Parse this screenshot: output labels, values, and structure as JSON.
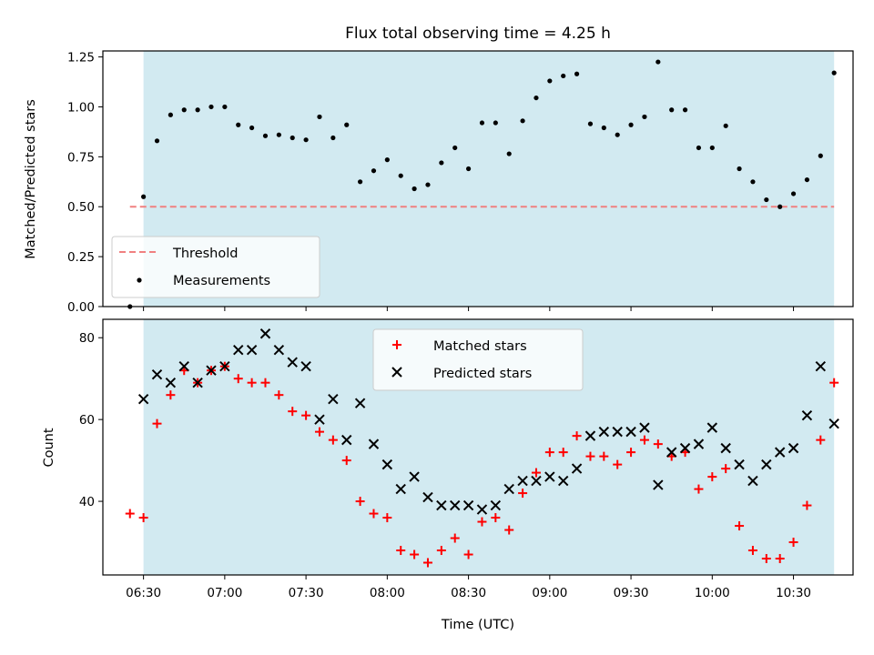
{
  "chart_data": [
    {
      "type": "scatter",
      "title": "Flux total observing time = 4.25 h",
      "xlabel": "",
      "ylabel": "Matched/Predicted stars",
      "xlim": [
        "06:15",
        "10:52"
      ],
      "ylim": [
        0,
        1.28
      ],
      "yticks": [
        "0.00",
        "0.25",
        "0.50",
        "0.75",
        "1.00",
        "1.25"
      ],
      "ytick_values": [
        0,
        0.25,
        0.5,
        0.75,
        1.0,
        1.25
      ],
      "grid": false,
      "legend_position": "lower-left",
      "shaded_span": {
        "from": "06:30",
        "to": "10:45",
        "color": "#add8e6"
      },
      "threshold": {
        "name": "Threshold",
        "value": 0.5,
        "from": "06:25",
        "to": "10:45",
        "color": "#f08080",
        "style": "dashed"
      },
      "series": [
        {
          "name": "Measurements",
          "marker": "dot",
          "color": "#000000",
          "x": [
            "06:25",
            "06:30",
            "06:35",
            "06:40",
            "06:45",
            "06:50",
            "06:55",
            "07:00",
            "07:05",
            "07:10",
            "07:15",
            "07:20",
            "07:25",
            "07:30",
            "07:35",
            "07:40",
            "07:45",
            "07:50",
            "07:55",
            "08:00",
            "08:05",
            "08:10",
            "08:15",
            "08:20",
            "08:25",
            "08:30",
            "08:35",
            "08:40",
            "08:45",
            "08:50",
            "08:55",
            "09:00",
            "09:05",
            "09:10",
            "09:15",
            "09:20",
            "09:25",
            "09:30",
            "09:35",
            "09:40",
            "09:45",
            "09:50",
            "09:55",
            "10:00",
            "10:05",
            "10:10",
            "10:15",
            "10:20",
            "10:25",
            "10:30",
            "10:35",
            "10:40",
            "10:45"
          ],
          "y": [
            0.0,
            0.55,
            0.83,
            0.96,
            0.985,
            0.985,
            1.0,
            1.0,
            0.91,
            0.895,
            0.855,
            0.86,
            0.845,
            0.835,
            0.95,
            0.845,
            0.91,
            0.625,
            0.68,
            0.735,
            0.655,
            0.59,
            0.61,
            0.72,
            0.795,
            0.69,
            0.92,
            0.92,
            0.765,
            0.93,
            1.045,
            1.13,
            1.155,
            1.165,
            0.915,
            0.895,
            0.86,
            0.91,
            0.95,
            1.225,
            0.985,
            0.985,
            0.795,
            0.795,
            0.905,
            0.69,
            0.625,
            0.535,
            0.5,
            0.565,
            0.635,
            0.755,
            1.17
          ]
        }
      ]
    },
    {
      "type": "scatter",
      "title": "",
      "xlabel": "Time (UTC)",
      "ylabel": "Count",
      "xlim": [
        "06:15",
        "10:52"
      ],
      "ylim": [
        22,
        84.5
      ],
      "xticks": [
        "06:30",
        "07:00",
        "07:30",
        "08:00",
        "08:30",
        "09:00",
        "09:30",
        "10:00",
        "10:30"
      ],
      "yticks": [
        "40",
        "60",
        "80"
      ],
      "ytick_values": [
        40,
        60,
        80
      ],
      "grid": false,
      "legend_position": "upper-center",
      "shaded_span": {
        "from": "06:30",
        "to": "10:45",
        "color": "#add8e6"
      },
      "series": [
        {
          "name": "Matched stars",
          "marker": "plus",
          "color": "#ff0000",
          "x": [
            "06:25",
            "06:30",
            "06:35",
            "06:40",
            "06:45",
            "06:50",
            "06:55",
            "07:00",
            "07:05",
            "07:10",
            "07:15",
            "07:20",
            "07:25",
            "07:30",
            "07:35",
            "07:40",
            "07:45",
            "07:50",
            "07:55",
            "08:00",
            "08:05",
            "08:10",
            "08:15",
            "08:20",
            "08:25",
            "08:30",
            "08:35",
            "08:40",
            "08:45",
            "08:50",
            "08:55",
            "09:00",
            "09:05",
            "09:10",
            "09:15",
            "09:20",
            "09:25",
            "09:30",
            "09:35",
            "09:40",
            "09:45",
            "09:50",
            "09:55",
            "10:00",
            "10:05",
            "10:10",
            "10:15",
            "10:20",
            "10:25",
            "10:30",
            "10:35",
            "10:40",
            "10:45"
          ],
          "y": [
            37,
            36,
            59,
            66,
            72,
            69,
            72,
            73,
            70,
            69,
            69,
            66,
            62,
            61,
            57,
            55,
            50,
            40,
            37,
            36,
            28,
            27,
            25,
            28,
            31,
            27,
            35,
            36,
            33,
            42,
            47,
            52,
            52,
            56,
            51,
            51,
            49,
            52,
            55,
            54,
            51,
            52,
            43,
            46,
            48,
            34,
            28,
            26,
            26,
            30,
            39,
            55,
            69
          ]
        },
        {
          "name": "Predicted stars",
          "marker": "x",
          "color": "#000000",
          "x": [
            "06:30",
            "06:35",
            "06:40",
            "06:45",
            "06:50",
            "06:55",
            "07:00",
            "07:05",
            "07:10",
            "07:15",
            "07:20",
            "07:25",
            "07:30",
            "07:35",
            "07:40",
            "07:45",
            "07:50",
            "07:55",
            "08:00",
            "08:05",
            "08:10",
            "08:15",
            "08:20",
            "08:25",
            "08:30",
            "08:35",
            "08:40",
            "08:45",
            "08:50",
            "08:55",
            "09:00",
            "09:05",
            "09:10",
            "09:15",
            "09:20",
            "09:25",
            "09:30",
            "09:35",
            "09:40",
            "09:45",
            "09:50",
            "09:55",
            "10:00",
            "10:05",
            "10:10",
            "10:15",
            "10:20",
            "10:25",
            "10:30",
            "10:35",
            "10:40",
            "10:45"
          ],
          "y": [
            65,
            71,
            69,
            73,
            69,
            72,
            73,
            77,
            77,
            81,
            77,
            74,
            73,
            60,
            65,
            55,
            64,
            54,
            49,
            43,
            46,
            41,
            39,
            39,
            39,
            38,
            39,
            43,
            45,
            45,
            46,
            45,
            48,
            56,
            57,
            57,
            57,
            58,
            44,
            52,
            53,
            54,
            58,
            53,
            49,
            45,
            49,
            52,
            53,
            61,
            73,
            59
          ]
        }
      ]
    }
  ]
}
